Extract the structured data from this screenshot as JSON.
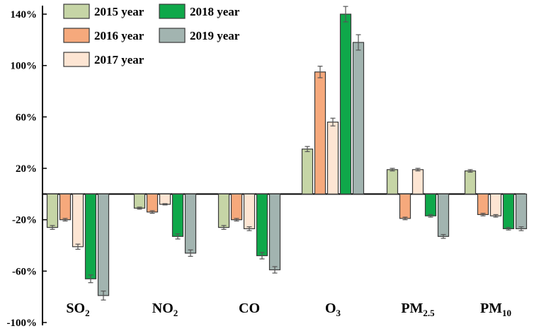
{
  "chart_data": {
    "type": "bar",
    "title": "",
    "xlabel": "",
    "ylabel": "",
    "ylim": [
      -100,
      140
    ],
    "yticks": [
      -100,
      -60,
      -20,
      20,
      60,
      100,
      140
    ],
    "ytick_labels": [
      "-100%",
      "-60%",
      "-20%",
      "20%",
      "60%",
      "100%",
      "140%"
    ],
    "categories": [
      {
        "base": "SO",
        "sub": "2"
      },
      {
        "base": "NO",
        "sub": "2"
      },
      {
        "base": "CO",
        "sub": ""
      },
      {
        "base": "O",
        "sub": "3"
      },
      {
        "base": "PM",
        "sub": "2.5"
      },
      {
        "base": "PM",
        "sub": "10"
      }
    ],
    "series": [
      {
        "name": "2015 year",
        "color": "#c6d5a6",
        "values": [
          -26,
          -11,
          -26,
          35,
          19,
          18
        ],
        "errors": [
          1.5,
          0.8,
          1.5,
          2,
          1,
          1
        ]
      },
      {
        "name": "2016 year",
        "color": "#f6a97c",
        "values": [
          -20,
          -14,
          -20,
          95,
          -19,
          -16
        ],
        "errors": [
          1,
          1,
          1,
          4.5,
          1,
          1
        ]
      },
      {
        "name": "2017 year",
        "color": "#fde5d3",
        "values": [
          -41,
          -8,
          -27,
          56,
          19,
          -17
        ],
        "errors": [
          2,
          0.5,
          1.5,
          3,
          1,
          1
        ]
      },
      {
        "name": "2018 year",
        "color": "#0fa84a",
        "values": [
          -66,
          -33,
          -48,
          140,
          -17,
          -27
        ],
        "errors": [
          3,
          2,
          2.5,
          6,
          1,
          1
        ]
      },
      {
        "name": "2019 year",
        "color": "#a2b4b0",
        "values": [
          -79,
          -46,
          -59,
          118,
          -33,
          -27
        ],
        "errors": [
          3.5,
          2.5,
          2.5,
          6,
          1.5,
          1.5
        ]
      }
    ],
    "legend": {
      "placement": "top-left",
      "entries": [
        "2015 year",
        "2016 year",
        "2017 year",
        "2018 year",
        "2019 year"
      ]
    },
    "grid": false
  }
}
